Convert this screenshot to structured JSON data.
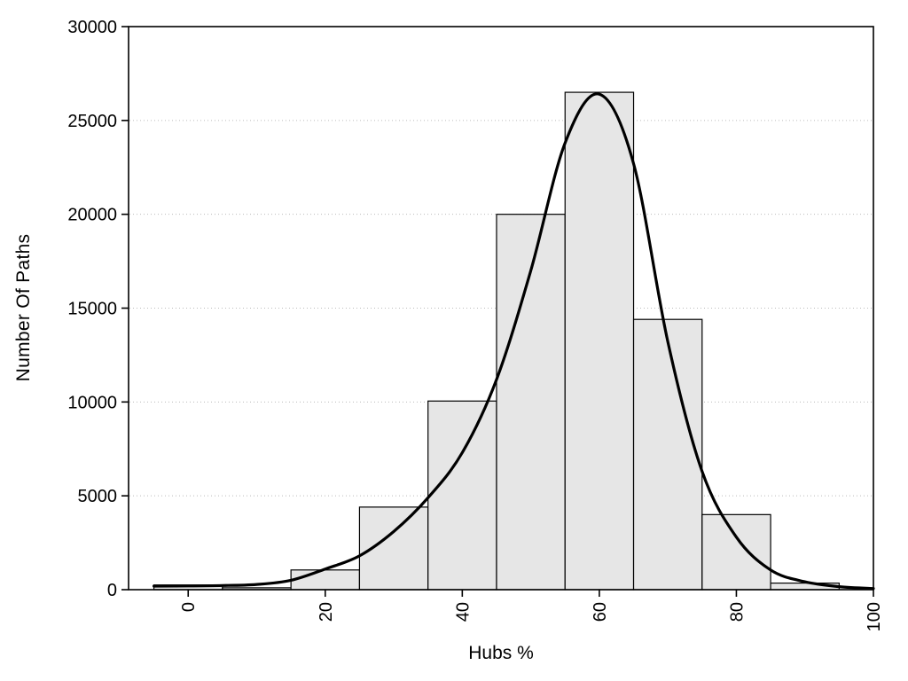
{
  "page": {
    "background": "#ffffff"
  },
  "chart_data": {
    "type": "bar",
    "subtype": "histogram-with-density-curve",
    "title": "",
    "xlabel": "Hubs %",
    "ylabel": "Number Of Paths",
    "xlim": [
      -8.7,
      100
    ],
    "ylim": [
      0,
      30000
    ],
    "x_ticks": [
      0,
      20,
      40,
      60,
      80,
      100
    ],
    "y_ticks": [
      0,
      5000,
      10000,
      15000,
      20000,
      25000,
      30000
    ],
    "x_tick_rotation": 90,
    "grid": "horizontal-dotted",
    "legend": "none",
    "bar_fill": "#e6e6e6",
    "bar_stroke": "#000000",
    "curve_color": "#000000",
    "frame_color": "#000000",
    "grid_color": "#bbbbbb",
    "bin_width": 10,
    "bars": {
      "centers": [
        0,
        10,
        20,
        30,
        40,
        50,
        60,
        70,
        80,
        90
      ],
      "values": [
        250,
        100,
        1050,
        4400,
        10050,
        20000,
        26500,
        14400,
        4000,
        350
      ]
    },
    "curve": {
      "x": [
        -5,
        0,
        5,
        10,
        15,
        20,
        25,
        30,
        35,
        40,
        45,
        50,
        55,
        60,
        65,
        70,
        75,
        80,
        85,
        90,
        95,
        100
      ],
      "y": [
        190,
        200,
        220,
        280,
        500,
        1100,
        1800,
        3100,
        4900,
        7300,
        11200,
        17000,
        23800,
        26400,
        22700,
        13200,
        6300,
        2800,
        1050,
        420,
        160,
        60
      ]
    }
  }
}
